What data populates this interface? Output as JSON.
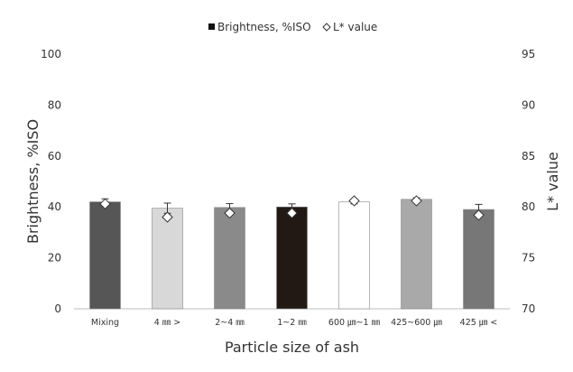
{
  "chart_data": {
    "type": "bar",
    "title": "",
    "xlabel": "Particle size of ash",
    "ylabel": "Brightness, %ISO",
    "y2label": "L* value",
    "ylim": [
      0,
      100
    ],
    "y2lim": [
      70,
      95
    ],
    "yticks": [
      "0",
      "20",
      "40",
      "60",
      "80",
      "100"
    ],
    "y2ticks": [
      "70",
      "75",
      "80",
      "85",
      "90",
      "95"
    ],
    "legend_position": "top-center",
    "categories": [
      "Mixing",
      "4 ㎜ >",
      "2~4 ㎜",
      "1~2 ㎜",
      "600 ㎛~1 ㎜",
      "425~600 ㎛",
      "425 ㎛ <"
    ],
    "series": [
      {
        "name": "Brightness, %ISO",
        "axis": "left",
        "values": [
          42.0,
          39.5,
          39.8,
          40.0,
          42.0,
          43.0,
          39.0
        ],
        "errors": [
          1.2,
          2.0,
          1.5,
          1.2,
          0.8,
          0.6,
          2.0
        ],
        "colors": [
          "#565656",
          "#d8d8d8",
          "#8a8a8a",
          "#221915",
          "#ffffff",
          "#a9a9a9",
          "#777777"
        ]
      },
      {
        "name": "L* value",
        "axis": "right",
        "values": [
          80.3,
          79.0,
          79.4,
          79.4,
          80.6,
          80.6,
          79.2
        ],
        "errors": [
          0.3,
          0.5,
          0.4,
          0.3,
          0.2,
          0.2,
          0.5
        ]
      }
    ]
  }
}
